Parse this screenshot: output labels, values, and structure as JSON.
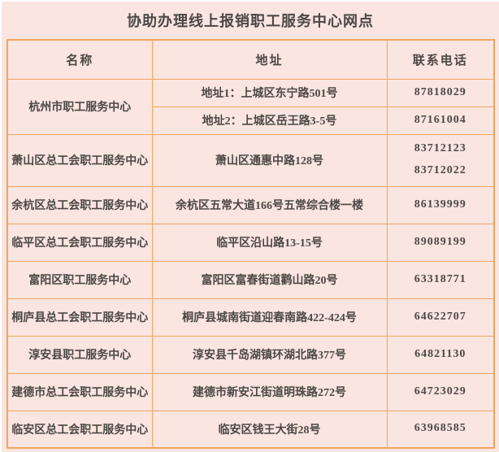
{
  "title": "协助办理线上报销职工服务中心网点",
  "colors": {
    "background": "#fae5e0",
    "border": "#f1a55f",
    "text": "#4c4845"
  },
  "table": {
    "headers": [
      "名称",
      "地址",
      "联系电话"
    ],
    "rows": [
      {
        "name": "杭州市职工服务中心",
        "entries": [
          {
            "address": "地址1：上城区东宁路501号",
            "phones": [
              "87818029"
            ]
          },
          {
            "address": "地址2：上城区岳王路3-5号",
            "phones": [
              "87161004"
            ]
          }
        ]
      },
      {
        "name": "萧山区总工会职工服务中心",
        "entries": [
          {
            "address": "萧山区通惠中路128号",
            "phones": [
              "83712123",
              "83712022"
            ]
          }
        ]
      },
      {
        "name": "余杭区总工会职工服务中心",
        "entries": [
          {
            "address": "余杭区五常大道166号五常综合楼一楼",
            "phones": [
              "86139999"
            ]
          }
        ]
      },
      {
        "name": "临平区总工会职工服务中心",
        "entries": [
          {
            "address": "临平区沿山路13-15号",
            "phones": [
              "89089199"
            ]
          }
        ]
      },
      {
        "name": "富阳区职工服务中心",
        "entries": [
          {
            "address": "富阳区富春街道鹳山路20号",
            "phones": [
              "63318771"
            ]
          }
        ]
      },
      {
        "name": "桐庐县总工会职工服务中心",
        "entries": [
          {
            "address": "桐庐县城南街道迎春南路422-424号",
            "phones": [
              "64622707"
            ]
          }
        ]
      },
      {
        "name": "淳安县职工服务中心",
        "entries": [
          {
            "address": "淳安县千岛湖镇环湖北路377号",
            "phones": [
              "64821130"
            ]
          }
        ]
      },
      {
        "name": "建德市总工会职工服务中心",
        "entries": [
          {
            "address": "建德市新安江街道明珠路272号",
            "phones": [
              "64723029"
            ]
          }
        ]
      },
      {
        "name": "临安区总工会职工服务中心",
        "entries": [
          {
            "address": "临安区钱王大街28号",
            "phones": [
              "63968585"
            ]
          }
        ]
      }
    ]
  }
}
